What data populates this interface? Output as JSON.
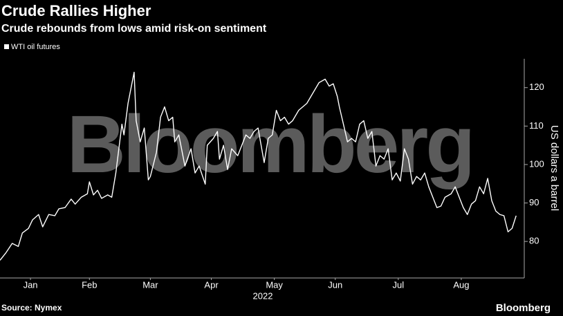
{
  "chart_data": {
    "type": "line",
    "title": "Crude Rallies Higher",
    "subtitle": "Crude rebounds from lows amid risk-on sentiment",
    "y_label": "US dollars a barrel",
    "x_label": "2022",
    "source": "Source: Nymex",
    "logo": "Bloomberg",
    "watermark": "Bloomberg",
    "xlim": [
      1,
      259
    ],
    "xticks": [
      {
        "value": 16,
        "label": "Jan"
      },
      {
        "value": 45,
        "label": "Feb"
      },
      {
        "value": 75,
        "label": "Mar"
      },
      {
        "value": 105,
        "label": "Apr"
      },
      {
        "value": 136,
        "label": "May"
      },
      {
        "value": 166,
        "label": "Jun"
      },
      {
        "value": 197,
        "label": "Jul"
      },
      {
        "value": 228,
        "label": "Aug"
      }
    ],
    "ylim": [
      70.5,
      127.5
    ],
    "yticks": [
      80,
      90,
      100,
      110,
      120
    ],
    "x": [
      1,
      4,
      7,
      10,
      12,
      15,
      17,
      20,
      22,
      25,
      28,
      30,
      33,
      36,
      38,
      41,
      44,
      45,
      47,
      49,
      51,
      54,
      56,
      58,
      61,
      62,
      64,
      67,
      68,
      70,
      72,
      74,
      75,
      78,
      80,
      82,
      84,
      86,
      87,
      89,
      91,
      92,
      95,
      97,
      99,
      102,
      103,
      106,
      108,
      109,
      111,
      113,
      115,
      118,
      120,
      122,
      124,
      126,
      128,
      131,
      133,
      135,
      137,
      139,
      141,
      143,
      145,
      148,
      150,
      152,
      154,
      156,
      158,
      161,
      163,
      165,
      167,
      168,
      170,
      172,
      174,
      176,
      178,
      180,
      182,
      184,
      186,
      188,
      190,
      192,
      194,
      196,
      198,
      200,
      202,
      204,
      206,
      208,
      210,
      212,
      214,
      216,
      218,
      220,
      223,
      225,
      227,
      229,
      231,
      233,
      235,
      237,
      239,
      241,
      243,
      245,
      247,
      249,
      251,
      253,
      255
    ],
    "series": [
      {
        "name": "WTI oil futures",
        "color": "#ffffff",
        "values": [
          75.1,
          77.1,
          79.5,
          78.7,
          82.2,
          83.4,
          85.6,
          87.0,
          83.8,
          87.0,
          86.7,
          88.5,
          88.8,
          91.0,
          89.7,
          91.5,
          92.4,
          95.5,
          92.1,
          93.3,
          91.2,
          92.1,
          91.5,
          97.8,
          110.5,
          107.7,
          115.9,
          124.0,
          111.4,
          105.9,
          109.5,
          96.0,
          96.9,
          103.2,
          112.3,
          115.0,
          111.4,
          112.3,
          105.9,
          107.7,
          102.3,
          99.6,
          104.1,
          97.8,
          99.6,
          94.9,
          105.0,
          106.8,
          108.6,
          101.4,
          105.0,
          98.7,
          104.1,
          102.3,
          105.0,
          107.7,
          106.8,
          108.6,
          109.5,
          100.5,
          106.8,
          107.7,
          114.1,
          111.4,
          112.3,
          110.5,
          111.4,
          114.1,
          115.0,
          115.9,
          117.7,
          119.5,
          121.3,
          122.2,
          120.4,
          121.0,
          117.7,
          115.0,
          110.5,
          105.9,
          106.8,
          105.9,
          110.5,
          111.4,
          106.8,
          108.6,
          99.6,
          102.3,
          101.4,
          104.1,
          96.0,
          97.8,
          95.7,
          104.1,
          101.4,
          94.9,
          96.9,
          96.0,
          97.8,
          94.2,
          91.5,
          88.8,
          89.2,
          91.5,
          92.4,
          94.2,
          91.5,
          88.8,
          87.0,
          89.7,
          90.6,
          94.2,
          92.4,
          96.4,
          90.6,
          87.9,
          87.0,
          86.7,
          82.5,
          83.4,
          86.7
        ]
      }
    ]
  }
}
